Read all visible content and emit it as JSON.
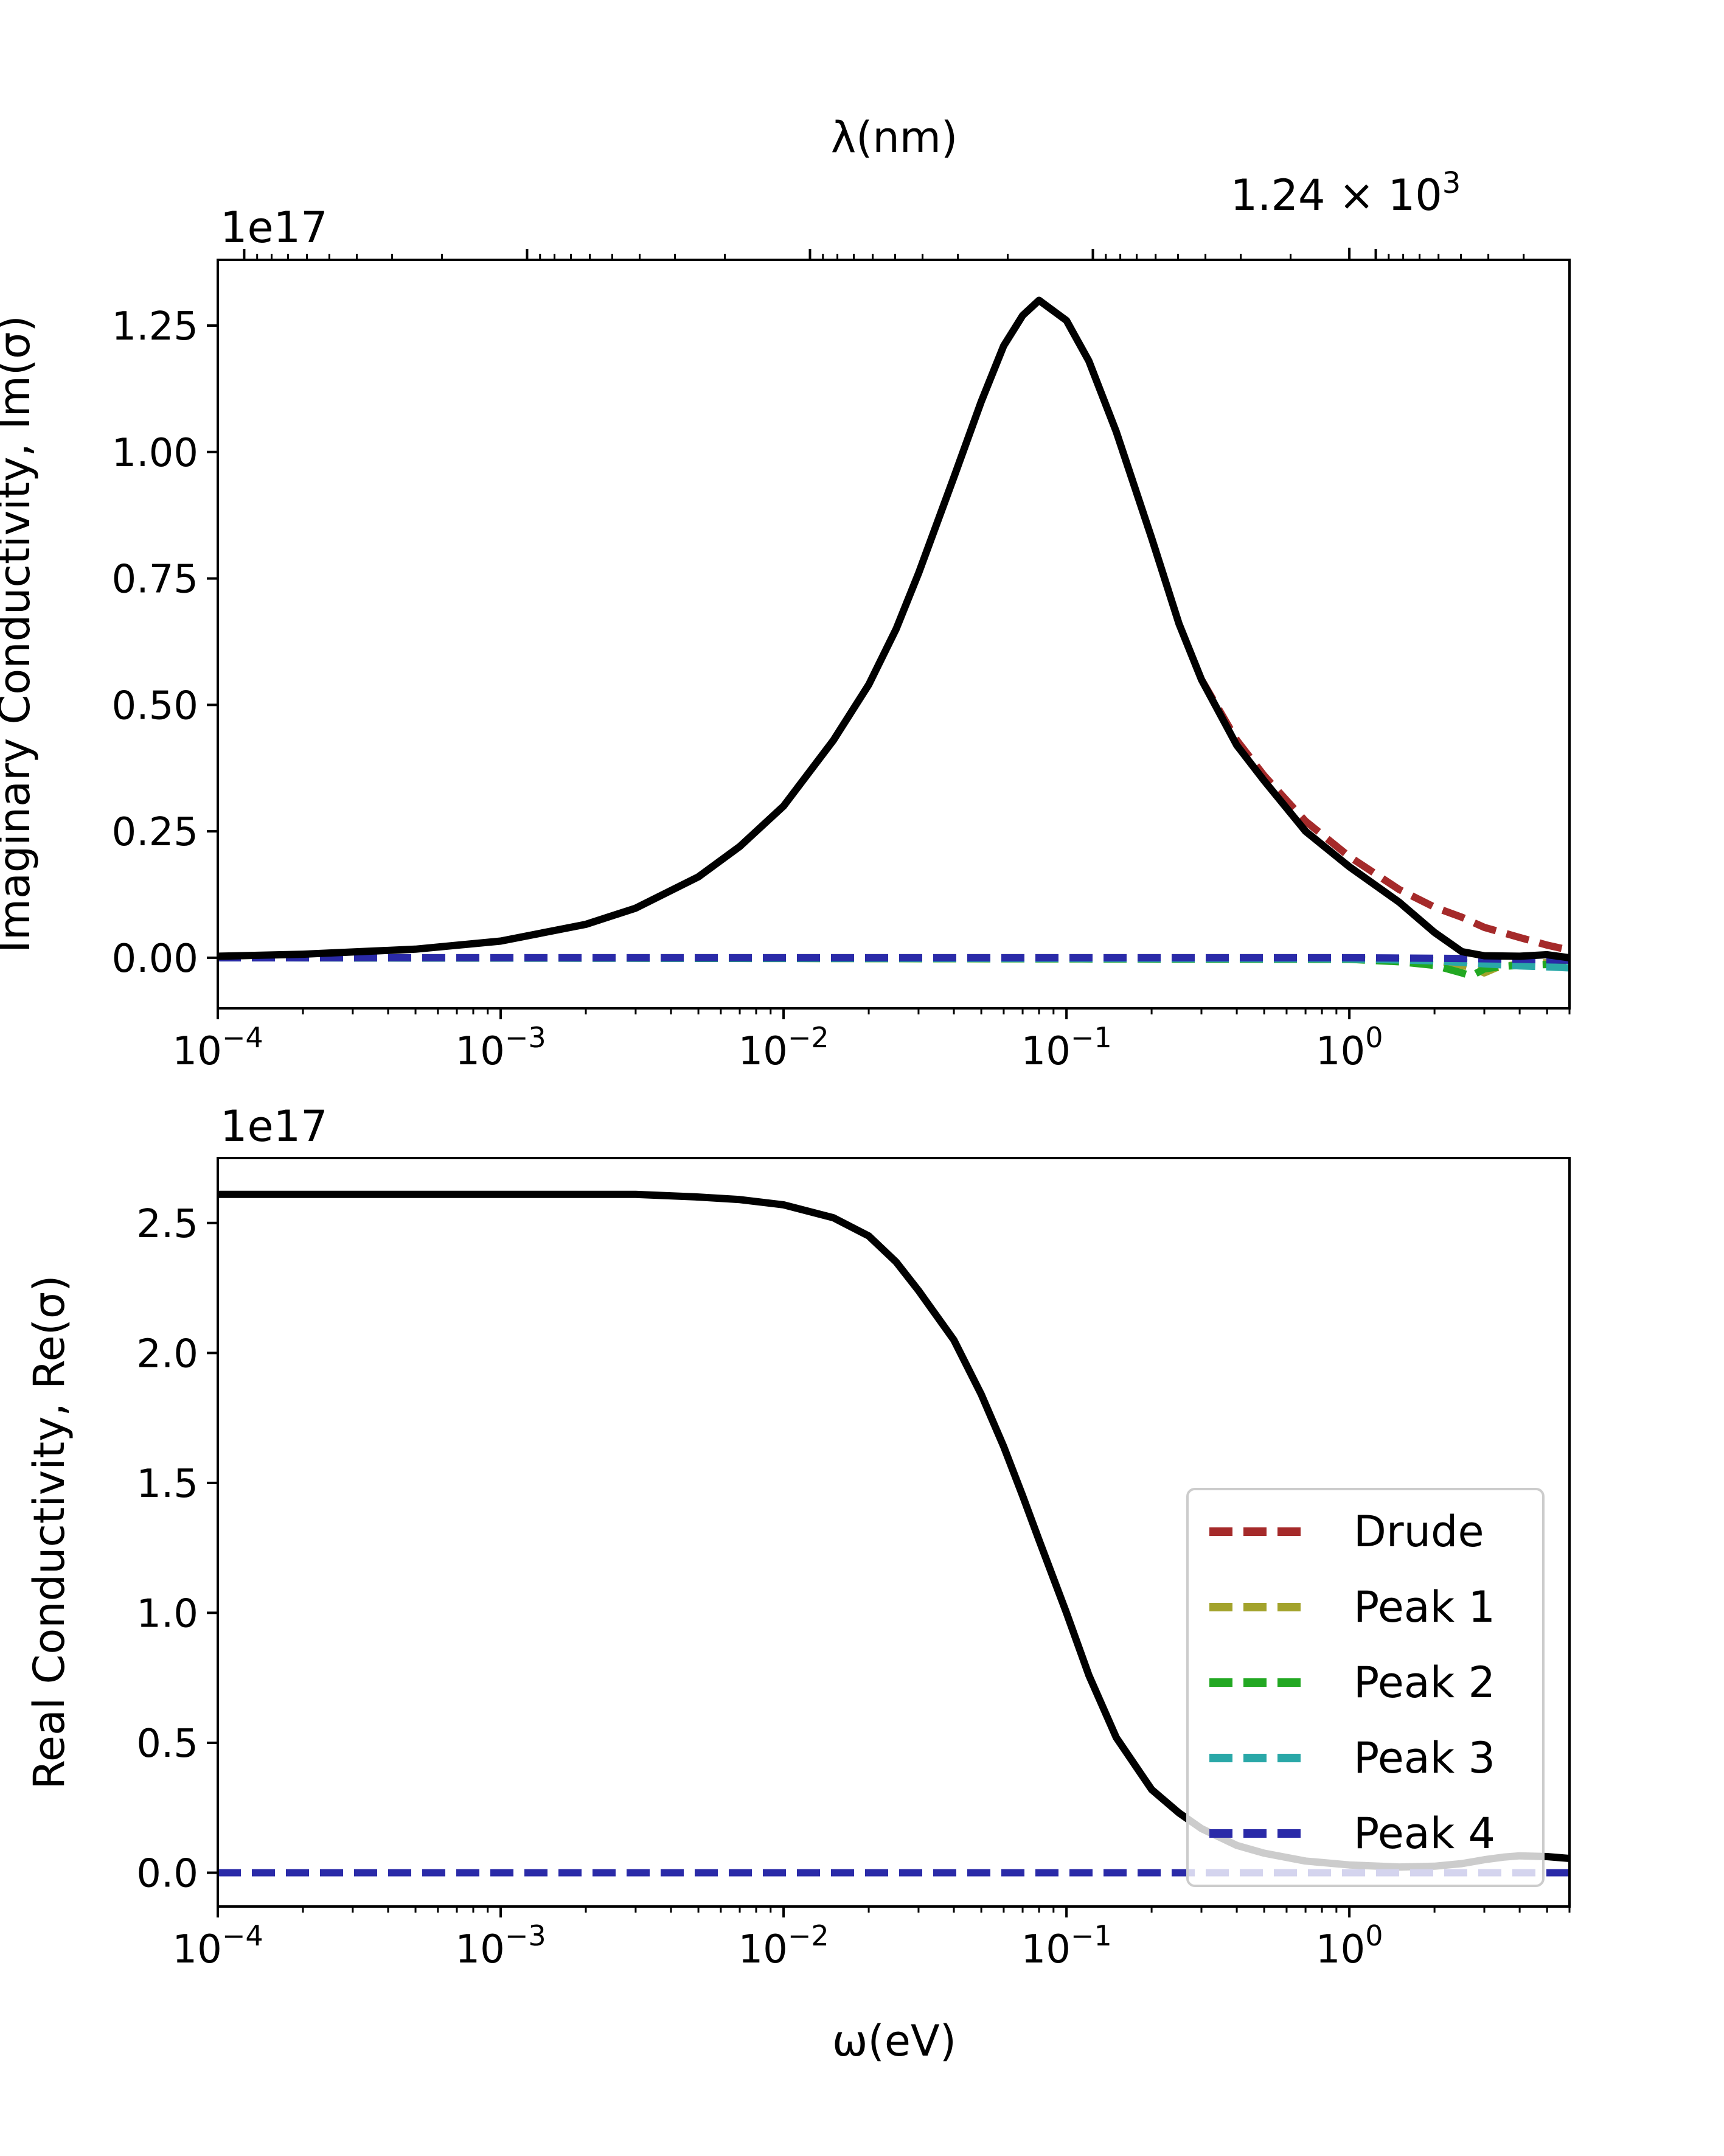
{
  "colors": {
    "total": "#000000",
    "drude": "#a52a2a",
    "peak1": "#a3a32c",
    "peak2": "#22a822",
    "peak3": "#2aa8a8",
    "peak4": "#2a2aa8"
  },
  "top_axis": {
    "label": "λ(nm)",
    "tick_label_mantissa": "1.24",
    "tick_label_base": "10",
    "tick_label_exp": "3",
    "tick_label_value_nm": 1240
  },
  "legend": {
    "placement": "lower-right",
    "entries": [
      "Drude",
      "Peak 1",
      "Peak 2",
      "Peak 3",
      "Peak 4"
    ]
  },
  "chart_data": [
    {
      "type": "line",
      "xscale": "log",
      "xlim": [
        0.0001,
        6.0
      ],
      "ylim": [
        -0.1,
        1.38
      ],
      "x_ticks": [
        0.0001,
        0.001,
        0.01,
        0.1,
        1
      ],
      "x_tick_base": "10",
      "x_tick_exps": [
        "−4",
        "−3",
        "−2",
        "−1",
        "0"
      ],
      "y_ticks": [
        0.0,
        0.25,
        0.5,
        0.75,
        1.0,
        1.25
      ],
      "y_tick_labels": [
        "0.00",
        "0.25",
        "0.50",
        "0.75",
        "1.00",
        "1.25"
      ],
      "y_offset_text": "1e17",
      "ylabel": "Imaginary Conductivity, Im(σ)",
      "xlabel": "",
      "series": [
        {
          "key": "total",
          "x": [
            0.0001,
            0.0002,
            0.0005,
            0.001,
            0.002,
            0.003,
            0.005,
            0.007,
            0.01,
            0.015,
            0.02,
            0.025,
            0.03,
            0.04,
            0.05,
            0.06,
            0.07,
            0.08,
            0.1,
            0.12,
            0.15,
            0.2,
            0.25,
            0.3,
            0.4,
            0.5,
            0.7,
            1.0,
            1.5,
            2.0,
            2.5,
            3.0,
            4.0,
            5.0,
            6.0
          ],
          "y": [
            0.003,
            0.007,
            0.017,
            0.033,
            0.066,
            0.098,
            0.16,
            0.22,
            0.3,
            0.43,
            0.54,
            0.65,
            0.76,
            0.95,
            1.1,
            1.21,
            1.27,
            1.3,
            1.26,
            1.18,
            1.04,
            0.83,
            0.66,
            0.55,
            0.42,
            0.35,
            0.25,
            0.18,
            0.11,
            0.05,
            0.012,
            0.004,
            0.003,
            0.006,
            0.0
          ]
        },
        {
          "key": "drude",
          "x": [
            0.3,
            0.4,
            0.5,
            0.7,
            1.0,
            1.5,
            2.0,
            2.5,
            3.0,
            4.0,
            5.0,
            6.0
          ],
          "y": [
            0.55,
            0.43,
            0.36,
            0.27,
            0.2,
            0.135,
            0.1,
            0.08,
            0.06,
            0.04,
            0.025,
            0.015
          ]
        },
        {
          "key": "peak1",
          "x": [
            0.0001,
            1.0,
            2.0,
            2.5,
            2.8,
            3.0,
            3.3,
            4.0,
            6.0
          ],
          "y": [
            0,
            0,
            -0.005,
            -0.015,
            -0.022,
            -0.03,
            -0.02,
            -0.012,
            -0.008
          ]
        },
        {
          "key": "peak2",
          "x": [
            0.0001,
            1.0,
            1.5,
            2.0,
            2.5,
            2.7,
            3.0,
            3.5,
            4.0,
            6.0
          ],
          "y": [
            0,
            -0.003,
            -0.008,
            -0.015,
            -0.03,
            -0.036,
            -0.022,
            -0.017,
            -0.015,
            -0.012
          ]
        },
        {
          "key": "peak3",
          "x": [
            0.0001,
            1.0,
            2.0,
            3.0,
            4.0,
            5.0,
            6.0
          ],
          "y": [
            0,
            -0.002,
            -0.006,
            -0.012,
            -0.016,
            -0.018,
            -0.02
          ]
        },
        {
          "key": "peak4",
          "x": [
            0.0001,
            1.0,
            2.0,
            3.0,
            4.0,
            5.0,
            6.0
          ],
          "y": [
            0,
            0,
            -0.001,
            -0.002,
            -0.003,
            -0.004,
            -0.005
          ]
        }
      ]
    },
    {
      "type": "line",
      "xscale": "log",
      "xlim": [
        0.0001,
        6.0
      ],
      "ylim": [
        -0.13,
        2.75
      ],
      "x_ticks": [
        0.0001,
        0.001,
        0.01,
        0.1,
        1
      ],
      "x_tick_base": "10",
      "x_tick_exps": [
        "−4",
        "−3",
        "−2",
        "−1",
        "0"
      ],
      "y_ticks": [
        0.0,
        0.5,
        1.0,
        1.5,
        2.0,
        2.5
      ],
      "y_tick_labels": [
        "0.0",
        "0.5",
        "1.0",
        "1.5",
        "2.0",
        "2.5"
      ],
      "y_offset_text": "1e17",
      "ylabel": "Real Conductivity, Re(σ)",
      "xlabel": "ω(eV)",
      "series": [
        {
          "key": "total",
          "x": [
            0.0001,
            0.0005,
            0.001,
            0.002,
            0.003,
            0.005,
            0.007,
            0.01,
            0.015,
            0.02,
            0.025,
            0.03,
            0.04,
            0.05,
            0.06,
            0.07,
            0.08,
            0.1,
            0.12,
            0.15,
            0.2,
            0.25,
            0.3,
            0.4,
            0.5,
            0.7,
            1.0,
            1.5,
            2.0,
            2.5,
            3.0,
            3.5,
            4.0,
            5.0,
            6.0
          ],
          "y": [
            2.61,
            2.61,
            2.61,
            2.61,
            2.61,
            2.6,
            2.59,
            2.57,
            2.52,
            2.45,
            2.35,
            2.24,
            2.05,
            1.84,
            1.64,
            1.45,
            1.28,
            1.0,
            0.76,
            0.52,
            0.32,
            0.23,
            0.17,
            0.105,
            0.075,
            0.045,
            0.03,
            0.022,
            0.025,
            0.035,
            0.05,
            0.06,
            0.065,
            0.062,
            0.055
          ]
        },
        {
          "key": "drude",
          "x": [
            0.0001,
            6.0
          ],
          "y": [
            0,
            0
          ]
        },
        {
          "key": "peak1",
          "x": [
            0.0001,
            6.0
          ],
          "y": [
            0,
            0
          ]
        },
        {
          "key": "peak2",
          "x": [
            0.0001,
            6.0
          ],
          "y": [
            0,
            0
          ]
        },
        {
          "key": "peak3",
          "x": [
            0.0001,
            6.0
          ],
          "y": [
            0,
            0
          ]
        },
        {
          "key": "peak4",
          "x": [
            0.0001,
            6.0
          ],
          "y": [
            0,
            0
          ]
        }
      ]
    }
  ]
}
